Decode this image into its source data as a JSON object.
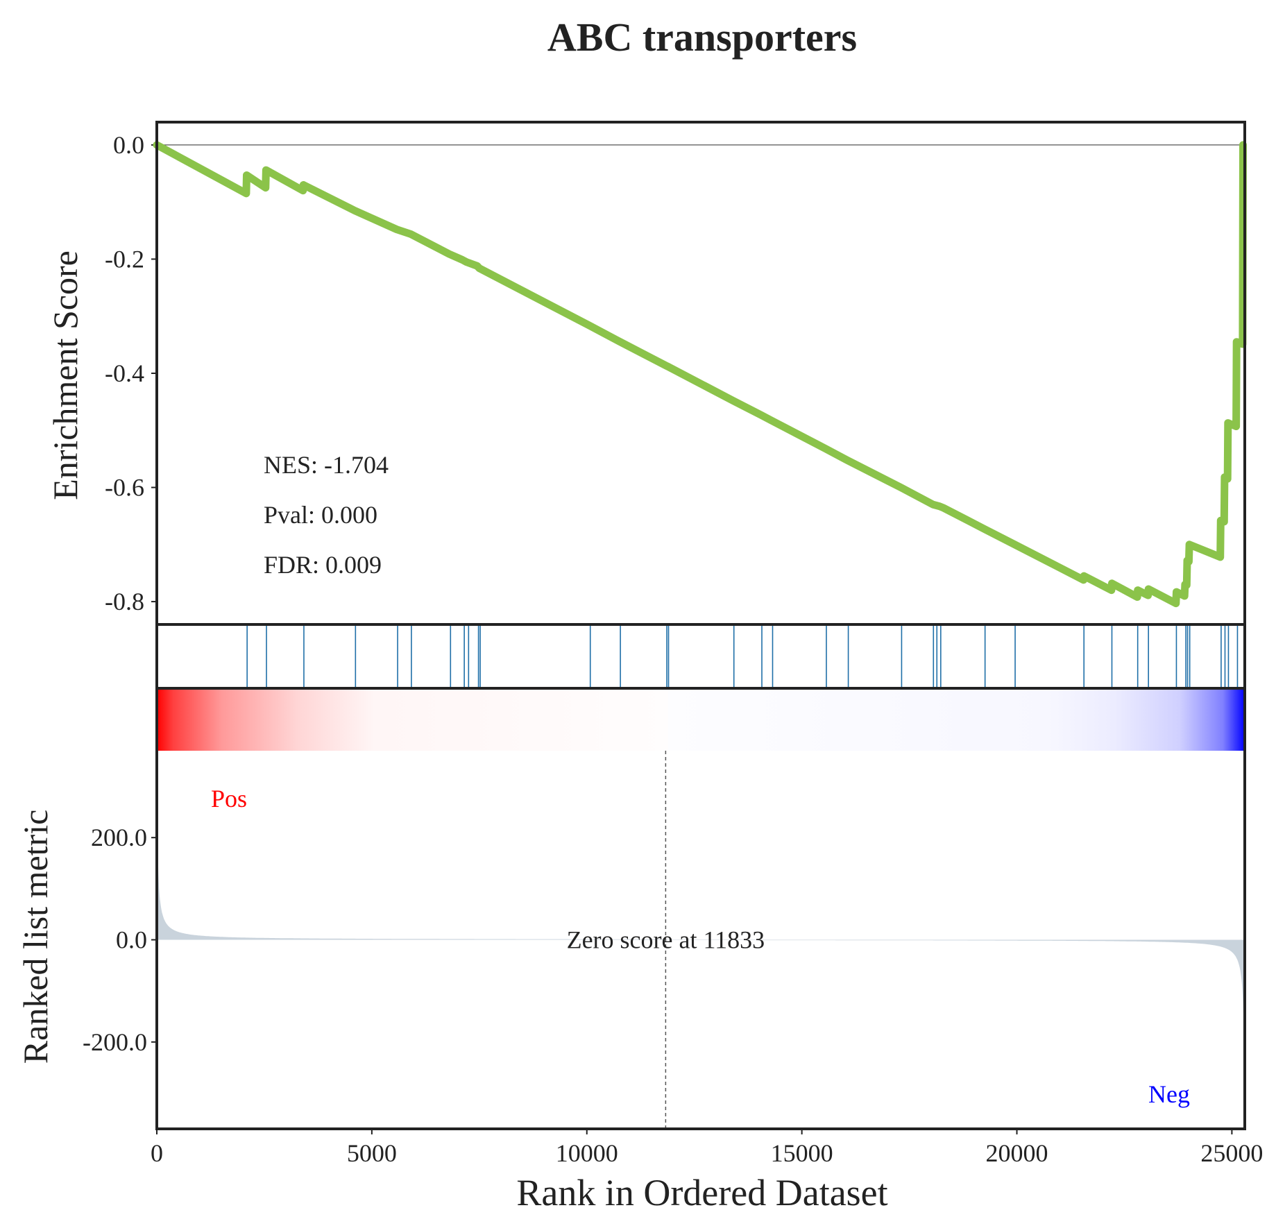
{
  "chart_data": {
    "type": "line",
    "title": "ABC transporters",
    "xlabel": "Rank in Ordered Dataset",
    "x_ticks": [
      0,
      5000,
      10000,
      15000,
      20000,
      25000
    ],
    "xlim": [
      0,
      25300
    ],
    "panels": {
      "enrichment": {
        "ylabel": "Enrichment Score",
        "ylim": [
          -0.84,
          0.04
        ],
        "y_ticks": [
          0.0,
          -0.2,
          -0.4,
          -0.6,
          -0.8
        ],
        "y_tick_labels": [
          "0.0",
          "-0.2",
          "-0.4",
          "-0.6",
          "-0.8"
        ],
        "line_color": "#8bc34a",
        "running_es": [
          [
            0,
            0.0
          ],
          [
            2080,
            -0.085
          ],
          [
            2090,
            -0.053
          ],
          [
            2530,
            -0.075
          ],
          [
            2540,
            -0.044
          ],
          [
            3400,
            -0.08
          ],
          [
            3410,
            -0.07
          ],
          [
            4600,
            -0.115
          ],
          [
            5580,
            -0.148
          ],
          [
            5900,
            -0.156
          ],
          [
            6800,
            -0.191
          ],
          [
            7100,
            -0.201
          ],
          [
            7200,
            -0.205
          ],
          [
            7450,
            -0.212
          ],
          [
            7500,
            -0.216
          ],
          [
            10050,
            -0.316
          ],
          [
            10750,
            -0.344
          ],
          [
            11850,
            -0.387
          ],
          [
            11880,
            -0.388
          ],
          [
            13400,
            -0.448
          ],
          [
            14050,
            -0.473
          ],
          [
            14300,
            -0.483
          ],
          [
            15550,
            -0.532
          ],
          [
            16050,
            -0.552
          ],
          [
            17300,
            -0.6
          ],
          [
            18050,
            -0.63
          ],
          [
            18200,
            -0.633
          ],
          [
            18300,
            -0.636
          ],
          [
            19250,
            -0.673
          ],
          [
            19950,
            -0.7
          ],
          [
            21550,
            -0.762
          ],
          [
            21560,
            -0.755
          ],
          [
            22200,
            -0.78
          ],
          [
            22210,
            -0.768
          ],
          [
            22800,
            -0.792
          ],
          [
            22810,
            -0.78
          ],
          [
            23050,
            -0.789
          ],
          [
            23060,
            -0.778
          ],
          [
            23700,
            -0.803
          ],
          [
            23710,
            -0.783
          ],
          [
            23900,
            -0.79
          ],
          [
            23910,
            -0.77
          ],
          [
            23950,
            -0.771
          ],
          [
            23960,
            -0.728
          ],
          [
            24000,
            -0.73
          ],
          [
            24010,
            -0.7
          ],
          [
            24730,
            -0.722
          ],
          [
            24740,
            -0.658
          ],
          [
            24820,
            -0.66
          ],
          [
            24830,
            -0.582
          ],
          [
            24900,
            -0.585
          ],
          [
            24910,
            -0.487
          ],
          [
            25100,
            -0.493
          ],
          [
            25110,
            -0.345
          ],
          [
            25250,
            -0.349
          ],
          [
            25260,
            0.0
          ]
        ],
        "stats": [
          "NES: -1.704",
          "Pval: 0.000",
          "FDR: 0.009"
        ]
      },
      "hits": {
        "positions": [
          2100,
          2550,
          3420,
          4620,
          5600,
          5920,
          6830,
          7150,
          7250,
          7480,
          7520,
          10080,
          10780,
          11860,
          11900,
          13420,
          14070,
          14320,
          15570,
          16080,
          17320,
          18060,
          18140,
          18230,
          19260,
          19960,
          21560,
          22210,
          22810,
          23060,
          23710,
          23930,
          23970,
          24020,
          24750,
          24840,
          24920,
          25130,
          25280
        ],
        "line_color": "#1f6fa8"
      },
      "heatmap": {
        "colors": [
          "#ff0000",
          "#ffffff",
          "#0000ff"
        ]
      },
      "ranked_metric": {
        "ylabel": "Ranked list metric",
        "ylim": [
          -370,
          370
        ],
        "y_ticks": [
          200,
          0,
          -200
        ],
        "y_tick_labels": [
          "200.0",
          "0.0",
          "-200.0"
        ],
        "fill_color": "#c9d3dc",
        "zero_cross": 11833,
        "zero_label": "Zero score at 11833",
        "pos_label": "Pos",
        "neg_label": "Neg",
        "pos_color": "#ff0000",
        "neg_color": "#0000ff"
      }
    }
  }
}
